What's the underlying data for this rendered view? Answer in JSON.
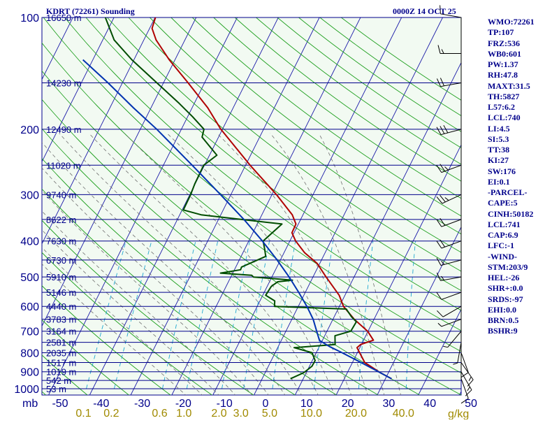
{
  "header": {
    "station": "KDRT (72261) Sounding",
    "valid_time": "0000Z 14 OCT 25"
  },
  "stats_panel": [
    "WMO:72261",
    "TP:107",
    "FRZ:536",
    "WB0:601",
    "PW:1.37",
    "RH:47.8",
    "MAXT:31.5",
    "TH:5827",
    "L57:6.2",
    "LCL:740",
    "LI:4.5",
    "SI:5.3",
    "TT:38",
    "KI:27",
    "SW:176",
    "EI:0.1",
    "-PARCEL-",
    "CAPE:5",
    "CINH:50182",
    "LCL:741",
    "CAP:6.9",
    "LFC:-1",
    "-WIND-",
    "STM:203/9",
    "HEL:-26",
    "SHR+:0.0",
    "SRDS:-97",
    "EHI:0.0",
    "BRN:0.5",
    "BSHR:9"
  ],
  "colors": {
    "isobar": "#00008b",
    "isotherm": "#1a1aa8",
    "dry_adiabat": "#20a020",
    "moist_adiabat": "#707070",
    "mixing_ratio": "#20a8d0",
    "temperature": "#b00000",
    "dewpoint": "#004d00",
    "parcel": "#0033b0",
    "mixing_label": "#a08a00"
  },
  "chart_data": {
    "type": "skew-t",
    "x_label": "",
    "y_unit": "mb",
    "mixing_ratio_unit": "g/kg",
    "pressure_ticks": [
      100,
      200,
      300,
      400,
      500,
      600,
      700,
      800,
      900,
      1000
    ],
    "temperature_ticks": [
      -50,
      -40,
      -30,
      -20,
      -10,
      0,
      10,
      20,
      30,
      40,
      50
    ],
    "mixing_ratio_labels": [
      "0.1",
      "0.2",
      "0.6",
      "1.0",
      "2.0",
      "3.0",
      "5.0",
      "10.0",
      "20.0",
      "40.0"
    ],
    "height_labels": [
      {
        "p": 100,
        "label": "16650 m"
      },
      {
        "p": 150,
        "label": "14230 m"
      },
      {
        "p": 200,
        "label": "12490 m"
      },
      {
        "p": 250,
        "label": "11020 m"
      },
      {
        "p": 300,
        "label": "9740 m"
      },
      {
        "p": 350,
        "label": "8622 m"
      },
      {
        "p": 400,
        "label": "7630 m"
      },
      {
        "p": 450,
        "label": "6730 m"
      },
      {
        "p": 500,
        "label": "5910 m"
      },
      {
        "p": 550,
        "label": "5146 m"
      },
      {
        "p": 600,
        "label": "4440 m"
      },
      {
        "p": 650,
        "label": "3783 m"
      },
      {
        "p": 700,
        "label": "3164 m"
      },
      {
        "p": 750,
        "label": "2581 m"
      },
      {
        "p": 800,
        "label": "2035 m"
      },
      {
        "p": 850,
        "label": "1517 m"
      },
      {
        "p": 900,
        "label": "1019 m"
      },
      {
        "p": 950,
        "label": "542 m"
      },
      {
        "p": 1000,
        "label": "53 m"
      }
    ],
    "series": [
      {
        "key": "temperature",
        "points": [
          {
            "p": 940,
            "t": 31.5
          },
          {
            "p": 905,
            "t": 28.0
          },
          {
            "p": 850,
            "t": 23.0
          },
          {
            "p": 775,
            "t": 19.3
          },
          {
            "p": 760,
            "t": 19.8
          },
          {
            "p": 740,
            "t": 22.4
          },
          {
            "p": 700,
            "t": 19.9
          },
          {
            "p": 650,
            "t": 15.2
          },
          {
            "p": 600,
            "t": 11.0
          },
          {
            "p": 560,
            "t": 8.6
          },
          {
            "p": 500,
            "t": 3.2
          },
          {
            "p": 460,
            "t": -0.6
          },
          {
            "p": 430,
            "t": -5.0
          },
          {
            "p": 400,
            "t": -8.6
          },
          {
            "p": 380,
            "t": -10.5
          },
          {
            "p": 360,
            "t": -10.6
          },
          {
            "p": 340,
            "t": -12.6
          },
          {
            "p": 300,
            "t": -18.9
          },
          {
            "p": 250,
            "t": -28.9
          },
          {
            "p": 200,
            "t": -40.4
          },
          {
            "p": 175,
            "t": -46.2
          },
          {
            "p": 150,
            "t": -54.0
          },
          {
            "p": 130,
            "t": -61.4
          },
          {
            "p": 115,
            "t": -67.0
          },
          {
            "p": 107,
            "t": -69.4
          },
          {
            "p": 100,
            "t": -69.9
          }
        ]
      },
      {
        "key": "dewpoint",
        "points": [
          {
            "p": 940,
            "t": 6.9
          },
          {
            "p": 905,
            "t": 9.4
          },
          {
            "p": 870,
            "t": 10.6
          },
          {
            "p": 840,
            "t": 10.7
          },
          {
            "p": 800,
            "t": 9.0
          },
          {
            "p": 775,
            "t": 4.0
          },
          {
            "p": 760,
            "t": 13.6
          },
          {
            "p": 720,
            "t": 12.5
          },
          {
            "p": 700,
            "t": 15.8
          },
          {
            "p": 660,
            "t": 16.0
          },
          {
            "p": 640,
            "t": 14.2
          },
          {
            "p": 610,
            "t": 12.0
          },
          {
            "p": 600,
            "t": -5.8
          },
          {
            "p": 580,
            "t": -6.4
          },
          {
            "p": 560,
            "t": -9.3
          },
          {
            "p": 530,
            "t": -9.0
          },
          {
            "p": 515,
            "t": -8.0
          },
          {
            "p": 510,
            "t": -4.6
          },
          {
            "p": 500,
            "t": -14.5
          },
          {
            "p": 495,
            "t": -15.1
          },
          {
            "p": 488,
            "t": -23.0
          },
          {
            "p": 478,
            "t": -18.5
          },
          {
            "p": 470,
            "t": -18.6
          },
          {
            "p": 440,
            "t": -14.0
          },
          {
            "p": 420,
            "t": -15.2
          },
          {
            "p": 400,
            "t": -16.5
          },
          {
            "p": 360,
            "t": -14.0
          },
          {
            "p": 340,
            "t": -34.8
          },
          {
            "p": 330,
            "t": -39.7
          },
          {
            "p": 300,
            "t": -39.8
          },
          {
            "p": 280,
            "t": -40.1
          },
          {
            "p": 250,
            "t": -40.2
          },
          {
            "p": 235,
            "t": -38.2
          },
          {
            "p": 210,
            "t": -44.0
          },
          {
            "p": 200,
            "t": -44.5
          },
          {
            "p": 185,
            "t": -48.8
          },
          {
            "p": 170,
            "t": -53.8
          },
          {
            "p": 150,
            "t": -61.6
          },
          {
            "p": 130,
            "t": -70.5
          },
          {
            "p": 115,
            "t": -77.2
          },
          {
            "p": 100,
            "t": -82.1
          }
        ]
      },
      {
        "key": "parcel",
        "points": [
          {
            "p": 940,
            "t": 31.5
          },
          {
            "p": 900,
            "t": 27.5
          },
          {
            "p": 850,
            "t": 22.1
          },
          {
            "p": 800,
            "t": 16.3
          },
          {
            "p": 770,
            "t": 12.5
          },
          {
            "p": 741,
            "t": 9.3
          },
          {
            "p": 700,
            "t": 7.5
          },
          {
            "p": 650,
            "t": 5.2
          },
          {
            "p": 600,
            "t": 2.1
          },
          {
            "p": 550,
            "t": -1.6
          },
          {
            "p": 500,
            "t": -5.8
          },
          {
            "p": 450,
            "t": -10.8
          },
          {
            "p": 400,
            "t": -16.7
          },
          {
            "p": 350,
            "t": -23.8
          },
          {
            "p": 300,
            "t": -32.5
          },
          {
            "p": 250,
            "t": -43.0
          },
          {
            "p": 200,
            "t": -56.0
          },
          {
            "p": 175,
            "t": -64.3
          },
          {
            "p": 150,
            "t": -73.5
          },
          {
            "p": 130,
            "t": -82.4
          }
        ]
      }
    ],
    "wind_barbs": [
      {
        "p": 940,
        "dir": 160,
        "spd": 10
      },
      {
        "p": 900,
        "dir": 150,
        "spd": 15
      },
      {
        "p": 850,
        "dir": 145,
        "spd": 15
      },
      {
        "p": 800,
        "dir": 160,
        "spd": 10
      },
      {
        "p": 750,
        "dir": 190,
        "spd": 5
      },
      {
        "p": 700,
        "dir": 220,
        "spd": 5
      },
      {
        "p": 650,
        "dir": 250,
        "spd": 5
      },
      {
        "p": 600,
        "dir": 240,
        "spd": 10
      },
      {
        "p": 550,
        "dir": 250,
        "spd": 10
      },
      {
        "p": 500,
        "dir": 260,
        "spd": 15
      },
      {
        "p": 450,
        "dir": 255,
        "spd": 15
      },
      {
        "p": 400,
        "dir": 250,
        "spd": 20
      },
      {
        "p": 350,
        "dir": 250,
        "spd": 20
      },
      {
        "p": 300,
        "dir": 245,
        "spd": 25
      },
      {
        "p": 250,
        "dir": 250,
        "spd": 25
      },
      {
        "p": 200,
        "dir": 255,
        "spd": 30
      },
      {
        "p": 150,
        "dir": 260,
        "spd": 20
      },
      {
        "p": 125,
        "dir": 270,
        "spd": 15
      },
      {
        "p": 100,
        "dir": 280,
        "spd": 10
      }
    ]
  }
}
